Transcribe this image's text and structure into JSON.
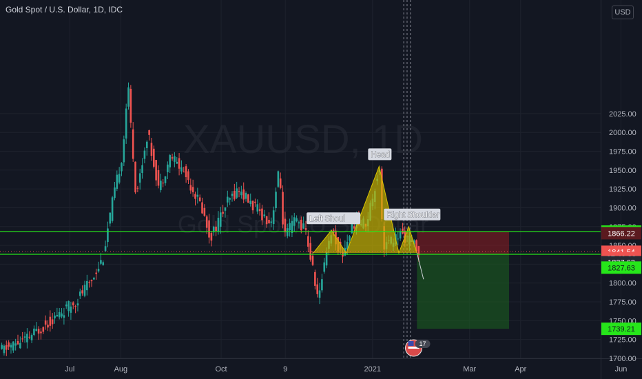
{
  "title": "Gold Spot / U.S. Dollar, 1D, IDC",
  "currency_button": "USD",
  "watermark_symbol": "XAUUSD, 1D",
  "watermark_name": "Gold Spot / U.S. Dollar",
  "colors": {
    "background": "#131722",
    "up": "#26a69a",
    "down": "#ef5350",
    "level_line": "#26e61a",
    "pattern_fill": "#c8b400",
    "stop_zone": "#8f1d23",
    "target_zone": "#1b5e20",
    "grid": "#1e222d"
  },
  "chart_data": {
    "type": "candlestick",
    "y_axis": {
      "min": 1690,
      "max": 2025,
      "ticks": [
        1700,
        1725,
        1750,
        1775,
        1800,
        1825,
        1850,
        1875,
        1900,
        1925,
        1950,
        1975,
        2000,
        2025
      ],
      "tick_labels": [
        "1700.00",
        "1725.00",
        "1750.00",
        "1775.00",
        "1800.00",
        "1825.00",
        "1850.00",
        "1875.00",
        "1900.00",
        "1925.00",
        "1950.00",
        "1975.00",
        "2000.00",
        "2025.00"
      ]
    },
    "x_axis": {
      "ticks": [
        {
          "label": "Jul",
          "date": "2020-07-01"
        },
        {
          "label": "Aug",
          "date": "2020-08-01"
        },
        {
          "label": "Oct",
          "date": "2020-10-01"
        },
        {
          "label": "9",
          "date": "2020-11-09"
        },
        {
          "label": "2021",
          "date": "2021-01-01"
        },
        {
          "label": "Mar",
          "date": "2021-03-01"
        },
        {
          "label": "Apr",
          "date": "2021-04-01"
        },
        {
          "label": "Jun",
          "date": "2021-06-01"
        }
      ]
    },
    "price_path": [
      {
        "date": "2020-05-20",
        "price": 1710
      },
      {
        "date": "2020-06-05",
        "price": 1725
      },
      {
        "date": "2020-06-20",
        "price": 1750
      },
      {
        "date": "2020-07-05",
        "price": 1775
      },
      {
        "date": "2020-07-15",
        "price": 1805
      },
      {
        "date": "2020-07-22",
        "price": 1835
      },
      {
        "date": "2020-07-27",
        "price": 1900
      },
      {
        "date": "2020-08-03",
        "price": 1975
      },
      {
        "date": "2020-08-06",
        "price": 2065
      },
      {
        "date": "2020-08-11",
        "price": 1915
      },
      {
        "date": "2020-08-18",
        "price": 2000
      },
      {
        "date": "2020-08-25",
        "price": 1925
      },
      {
        "date": "2020-09-01",
        "price": 1970
      },
      {
        "date": "2020-09-10",
        "price": 1945
      },
      {
        "date": "2020-09-20",
        "price": 1900
      },
      {
        "date": "2020-09-25",
        "price": 1860
      },
      {
        "date": "2020-10-05",
        "price": 1905
      },
      {
        "date": "2020-10-12",
        "price": 1925
      },
      {
        "date": "2020-10-20",
        "price": 1905
      },
      {
        "date": "2020-11-01",
        "price": 1880
      },
      {
        "date": "2020-11-06",
        "price": 1950
      },
      {
        "date": "2020-11-09",
        "price": 1860
      },
      {
        "date": "2020-11-16",
        "price": 1885
      },
      {
        "date": "2020-11-22",
        "price": 1870
      },
      {
        "date": "2020-11-30",
        "price": 1775
      },
      {
        "date": "2020-12-04",
        "price": 1840
      },
      {
        "date": "2020-12-08",
        "price": 1870
      },
      {
        "date": "2020-12-14",
        "price": 1835
      },
      {
        "date": "2020-12-21",
        "price": 1880
      },
      {
        "date": "2020-12-29",
        "price": 1880
      },
      {
        "date": "2021-01-06",
        "price": 1955
      },
      {
        "date": "2021-01-08",
        "price": 1850
      },
      {
        "date": "2021-01-13",
        "price": 1855
      },
      {
        "date": "2021-01-19",
        "price": 1865
      },
      {
        "date": "2021-01-25",
        "price": 1855
      },
      {
        "date": "2021-01-29",
        "price": 1845
      }
    ],
    "horizontal_levels": [
      {
        "price": 1868.32,
        "label": "1868.32",
        "style": "solid-green"
      },
      {
        "price": 1838.2,
        "style": "solid-green"
      },
      {
        "price": 1841.54,
        "style": "dotted-red"
      }
    ],
    "price_labels": [
      {
        "price": 1868.32,
        "text": "1868.32",
        "kind": "green"
      },
      {
        "price": 1866.22,
        "text": "1866.22",
        "kind": "dark-red"
      },
      {
        "price": 1841.54,
        "text": "1841.54",
        "kind": "red"
      },
      {
        "price": 1833.0,
        "text": "07:40:38",
        "kind": "red"
      },
      {
        "price": 1827.63,
        "text": "1827.63",
        "kind": "grey"
      },
      {
        "price": 1820.5,
        "text": "1827.63",
        "kind": "green"
      },
      {
        "price": 1739.21,
        "text": "1739.21",
        "kind": "green"
      }
    ],
    "pattern": {
      "type": "head-and-shoulders",
      "points": [
        {
          "date": "2020-11-26",
          "price": 1840,
          "label": ""
        },
        {
          "date": "2020-12-07",
          "price": 1870,
          "label": "Left Shoulder"
        },
        {
          "date": "2020-12-16",
          "price": 1840,
          "label": ""
        },
        {
          "date": "2021-01-05",
          "price": 1955,
          "label": "Head"
        },
        {
          "date": "2021-01-17",
          "price": 1840,
          "label": ""
        },
        {
          "date": "2021-01-23",
          "price": 1875,
          "label": "Right Shoulder"
        },
        {
          "date": "2021-01-28",
          "price": 1840,
          "label": ""
        }
      ],
      "label_texts": [
        "Left Shoul",
        "Head",
        "Right Shoulder"
      ]
    },
    "projection_line": [
      {
        "date": "2021-01-28",
        "price": 1840
      },
      {
        "date": "2021-02-01",
        "price": 1805
      }
    ],
    "position": {
      "type": "short",
      "start_date": "2021-01-28",
      "end_date": "2021-03-25",
      "entry": 1838.2,
      "stop": 1868.32,
      "target": 1739.21
    },
    "dashed_verticals": [
      "2021-01-20",
      "2021-01-22",
      "2021-01-24"
    ],
    "event_badge": {
      "date": "2021-01-26",
      "text": "17"
    }
  }
}
